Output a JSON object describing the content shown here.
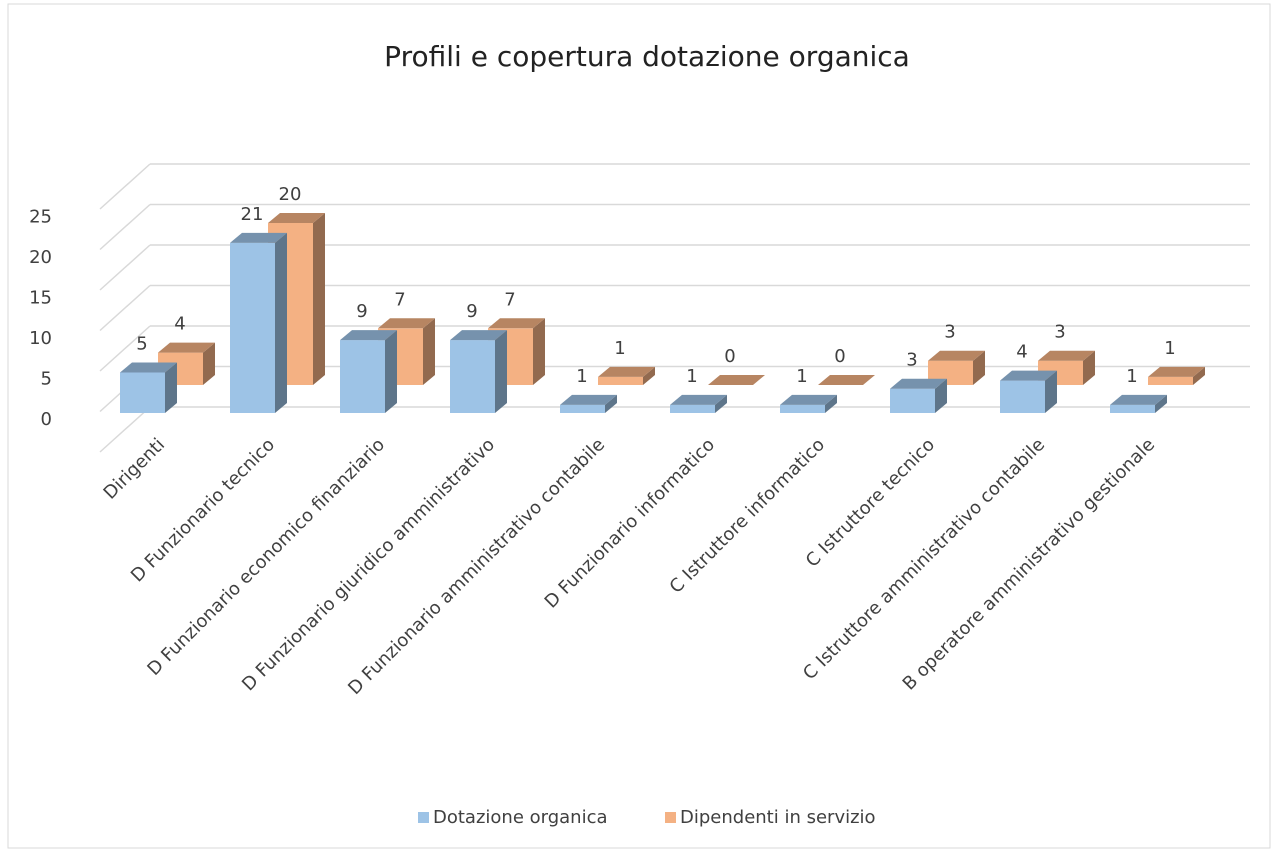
{
  "chart_data": {
    "type": "bar3d",
    "title": "Profili e copertura  dotazione  organica",
    "categories": [
      "Dirigenti",
      "D Funzionario tecnico",
      "D Funzionario economico finanziario",
      "D Funzionario giuridico amministrativo",
      "D Funzionario amministrativo contabile",
      "D Funzionario informatico",
      "C Istruttore informatico",
      "C Istruttore tecnico",
      "C Istruttore amministrativo contabile",
      "B operatore amministrativo gestionale"
    ],
    "series": [
      {
        "name": "Dotazione organica",
        "color": "#9dc3e6",
        "values": [
          5,
          21,
          9,
          9,
          1,
          1,
          1,
          3,
          4,
          1
        ]
      },
      {
        "name": "Dipendenti in servizio",
        "color": "#f4b183",
        "values": [
          4,
          20,
          7,
          7,
          1,
          0,
          0,
          3,
          3,
          1
        ]
      }
    ],
    "ylim": [
      0,
      30
    ],
    "yticks": [
      0,
      5,
      10,
      15,
      20,
      25
    ],
    "grid": true,
    "legend": "bottom"
  }
}
